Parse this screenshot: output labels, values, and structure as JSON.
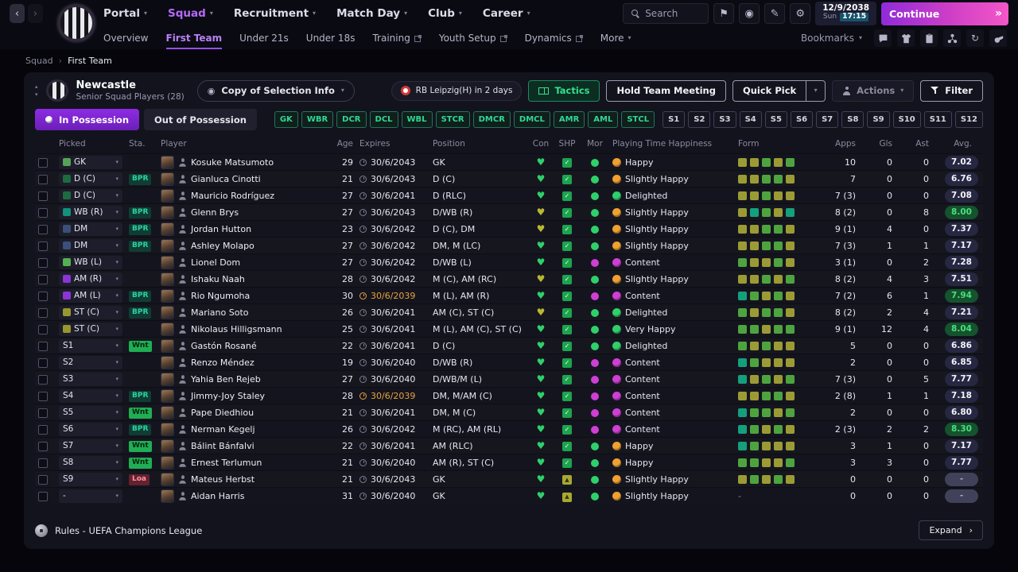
{
  "colors": {
    "accent_purple": "#8d2ce4",
    "accent_pink": "#f457c8",
    "accent_green": "#31d796",
    "warn_orange": "#e8a33d",
    "content_purple": "#cf3fd4",
    "happy_orange": "#f0a030",
    "positive_green": "#2fd06a"
  },
  "topbar": {
    "menus": [
      {
        "label": "Portal",
        "active": false
      },
      {
        "label": "Squad",
        "active": true
      },
      {
        "label": "Recruitment",
        "active": false
      },
      {
        "label": "Match Day",
        "active": false
      },
      {
        "label": "Club",
        "active": false
      },
      {
        "label": "Career",
        "active": false
      }
    ],
    "search_placeholder": "Search",
    "date": "12/9/2038",
    "day": "Sun",
    "time": "17:15",
    "continue_label": "Continue"
  },
  "subnav": {
    "items": [
      {
        "label": "Overview",
        "active": false,
        "popout": false,
        "dropdown": false
      },
      {
        "label": "First Team",
        "active": true,
        "popout": false,
        "dropdown": false
      },
      {
        "label": "Under 21s",
        "active": false,
        "popout": false,
        "dropdown": false
      },
      {
        "label": "Under 18s",
        "active": false,
        "popout": false,
        "dropdown": false
      },
      {
        "label": "Training",
        "active": false,
        "popout": true,
        "dropdown": false
      },
      {
        "label": "Youth Setup",
        "active": false,
        "popout": true,
        "dropdown": false
      },
      {
        "label": "Dynamics",
        "active": false,
        "popout": true,
        "dropdown": false
      },
      {
        "label": "More",
        "active": false,
        "popout": false,
        "dropdown": true
      }
    ],
    "bookmarks_label": "Bookmarks"
  },
  "breadcrumb": {
    "items": [
      "Squad",
      "First Team"
    ]
  },
  "panel": {
    "club_name": "Newcastle",
    "subtitle": "Senior Squad Players (28)",
    "selection_dropdown": "Copy of Selection Info",
    "next_match": "RB Leipzig(H) in 2 days",
    "tactics_label": "Tactics",
    "meeting_label": "Hold Team Meeting",
    "quick_pick_label": "Quick Pick",
    "actions_label": "Actions",
    "filter_label": "Filter",
    "tabs": [
      {
        "label": "In Possession",
        "active": true
      },
      {
        "label": "Out of Possession",
        "active": false
      }
    ],
    "position_filters": [
      "GK",
      "WBR",
      "DCR",
      "DCL",
      "WBL",
      "STCR",
      "DMCR",
      "DMCL",
      "AMR",
      "AML",
      "STCL"
    ],
    "slot_filters": [
      "S1",
      "S2",
      "S3",
      "S4",
      "S5",
      "S6",
      "S7",
      "S8",
      "S9",
      "S10",
      "S11",
      "S12"
    ],
    "table": {
      "headers": [
        "Picked",
        "Sta.",
        "Player",
        "Age",
        "Expires",
        "Position",
        "Con",
        "SHP",
        "Mor",
        "Playing Time Happiness",
        "Form",
        "Apps",
        "Gls",
        "Ast",
        "Avg."
      ],
      "rows": [
        {
          "picked": "GK",
          "picked_color": "gk",
          "sta": "",
          "name": "Kosuke Matsumoto",
          "age": "29",
          "expires": "30/6/2043",
          "expires_warn": false,
          "position": "GK",
          "con": "green",
          "shp": "check",
          "mor": "green",
          "happiness": "Happy",
          "happiness_color": "orange",
          "form": [
            "o",
            "o",
            "g",
            "o",
            "g"
          ],
          "apps": "10",
          "gls": "0",
          "ast": "0",
          "avg": "7.02",
          "avg_style": "dark"
        },
        {
          "picked": "D (C)",
          "picked_color": "d",
          "sta": "BPR",
          "name": "Gianluca Cinotti",
          "age": "21",
          "expires": "30/6/2043",
          "expires_warn": false,
          "position": "D (C)",
          "con": "green",
          "shp": "check",
          "mor": "green",
          "happiness": "Slightly Happy",
          "happiness_color": "orange",
          "form": [
            "o",
            "o",
            "g",
            "g",
            "o"
          ],
          "apps": "7",
          "gls": "0",
          "ast": "0",
          "avg": "6.76",
          "avg_style": "dark"
        },
        {
          "picked": "D (C)",
          "picked_color": "d",
          "sta": "",
          "name": "Mauricio Rodríguez",
          "age": "27",
          "expires": "30/6/2041",
          "expires_warn": false,
          "position": "D (RLC)",
          "con": "green",
          "shp": "check",
          "mor": "green",
          "happiness": "Delighted",
          "happiness_color": "green",
          "form": [
            "o",
            "o",
            "g",
            "o",
            "o"
          ],
          "apps": "7 (3)",
          "gls": "0",
          "ast": "0",
          "avg": "7.08",
          "avg_style": "dark"
        },
        {
          "picked": "WB (R)",
          "picked_color": "wb",
          "sta": "BPR",
          "name": "Glenn Brys",
          "age": "27",
          "expires": "30/6/2043",
          "expires_warn": false,
          "position": "D/WB (R)",
          "con": "olive",
          "shp": "check",
          "mor": "green",
          "happiness": "Slightly Happy",
          "happiness_color": "orange",
          "form": [
            "o",
            "t",
            "g",
            "o",
            "t"
          ],
          "apps": "8 (2)",
          "gls": "0",
          "ast": "8",
          "avg": "8.00",
          "avg_style": "green"
        },
        {
          "picked": "DM",
          "picked_color": "dm",
          "sta": "BPR",
          "name": "Jordan Hutton",
          "age": "23",
          "expires": "30/6/2042",
          "expires_warn": false,
          "position": "D (C), DM",
          "con": "olive",
          "shp": "check",
          "mor": "green",
          "happiness": "Slightly Happy",
          "happiness_color": "orange",
          "form": [
            "o",
            "o",
            "g",
            "g",
            "o"
          ],
          "apps": "9 (1)",
          "gls": "4",
          "ast": "0",
          "avg": "7.37",
          "avg_style": "dark"
        },
        {
          "picked": "DM",
          "picked_color": "dm",
          "sta": "BPR",
          "name": "Ashley Molapo",
          "age": "27",
          "expires": "30/6/2042",
          "expires_warn": false,
          "position": "DM, M (LC)",
          "con": "green",
          "shp": "check",
          "mor": "green",
          "happiness": "Slightly Happy",
          "happiness_color": "orange",
          "form": [
            "o",
            "o",
            "g",
            "g",
            "o"
          ],
          "apps": "7 (3)",
          "gls": "1",
          "ast": "1",
          "avg": "7.17",
          "avg_style": "dark"
        },
        {
          "picked": "WB (L)",
          "picked_color": "wbl",
          "sta": "",
          "name": "Lionel Dom",
          "age": "27",
          "expires": "30/6/2042",
          "expires_warn": false,
          "position": "D/WB (L)",
          "con": "green",
          "shp": "check",
          "mor": "purple",
          "happiness": "Content",
          "happiness_color": "purple",
          "form": [
            "g",
            "o",
            "o",
            "g",
            "o"
          ],
          "apps": "3 (1)",
          "gls": "0",
          "ast": "2",
          "avg": "7.28",
          "avg_style": "dark"
        },
        {
          "picked": "AM (R)",
          "picked_color": "am",
          "sta": "",
          "name": "Ishaku Naah",
          "age": "28",
          "expires": "30/6/2042",
          "expires_warn": false,
          "position": "M (C), AM (RC)",
          "con": "olive",
          "shp": "check",
          "mor": "green",
          "happiness": "Slightly Happy",
          "happiness_color": "orange",
          "form": [
            "o",
            "o",
            "g",
            "o",
            "g"
          ],
          "apps": "8 (2)",
          "gls": "4",
          "ast": "3",
          "avg": "7.51",
          "avg_style": "dark"
        },
        {
          "picked": "AM (L)",
          "picked_color": "am",
          "sta": "BPR",
          "name": "Rio Ngumoha",
          "age": "30",
          "expires": "30/6/2039",
          "expires_warn": true,
          "position": "M (L), AM (R)",
          "con": "green",
          "shp": "check",
          "mor": "purple",
          "happiness": "Content",
          "happiness_color": "purple",
          "form": [
            "t",
            "g",
            "o",
            "g",
            "o"
          ],
          "apps": "7 (2)",
          "gls": "6",
          "ast": "1",
          "avg": "7.94",
          "avg_style": "green"
        },
        {
          "picked": "ST (C)",
          "picked_color": "st",
          "sta": "BPR",
          "name": "Mariano Soto",
          "age": "26",
          "expires": "30/6/2041",
          "expires_warn": false,
          "position": "AM (C), ST (C)",
          "con": "olive",
          "shp": "check",
          "mor": "green",
          "happiness": "Delighted",
          "happiness_color": "green",
          "form": [
            "g",
            "o",
            "g",
            "g",
            "o"
          ],
          "apps": "8 (2)",
          "gls": "2",
          "ast": "4",
          "avg": "7.21",
          "avg_style": "dark"
        },
        {
          "picked": "ST (C)",
          "picked_color": "st",
          "sta": "",
          "name": "Nikolaus Hilligsmann",
          "age": "25",
          "expires": "30/6/2041",
          "expires_warn": false,
          "position": "M (L), AM (C), ST (C)",
          "con": "green",
          "shp": "check",
          "mor": "green",
          "happiness": "Very Happy",
          "happiness_color": "green",
          "form": [
            "g",
            "g",
            "o",
            "g",
            "g"
          ],
          "apps": "9 (1)",
          "gls": "12",
          "ast": "4",
          "avg": "8.04",
          "avg_style": "green"
        },
        {
          "picked": "S1",
          "picked_color": null,
          "sta": "Wnt",
          "name": "Gastón Rosané",
          "age": "22",
          "expires": "30/6/2041",
          "expires_warn": false,
          "position": "D (C)",
          "con": "green",
          "shp": "check",
          "mor": "green",
          "happiness": "Delighted",
          "happiness_color": "green",
          "form": [
            "g",
            "o",
            "g",
            "o",
            "o"
          ],
          "apps": "5",
          "gls": "0",
          "ast": "0",
          "avg": "6.86",
          "avg_style": "dark"
        },
        {
          "picked": "S2",
          "picked_color": null,
          "sta": "",
          "name": "Renzo Méndez",
          "age": "19",
          "expires": "30/6/2040",
          "expires_warn": false,
          "position": "D/WB (R)",
          "con": "green",
          "shp": "check",
          "mor": "purple",
          "happiness": "Content",
          "happiness_color": "purple",
          "form": [
            "t",
            "g",
            "o",
            "o",
            "o"
          ],
          "apps": "2",
          "gls": "0",
          "ast": "0",
          "avg": "6.85",
          "avg_style": "dark"
        },
        {
          "picked": "S3",
          "picked_color": null,
          "sta": "",
          "name": "Yahia Ben Rejeb",
          "age": "27",
          "expires": "30/6/2040",
          "expires_warn": false,
          "position": "D/WB/M (L)",
          "con": "green",
          "shp": "check",
          "mor": "purple",
          "happiness": "Content",
          "happiness_color": "purple",
          "form": [
            "t",
            "o",
            "g",
            "o",
            "g"
          ],
          "apps": "7 (3)",
          "gls": "0",
          "ast": "5",
          "avg": "7.77",
          "avg_style": "dark"
        },
        {
          "picked": "S4",
          "picked_color": null,
          "sta": "BPR",
          "name": "Jimmy-Joy Staley",
          "age": "28",
          "expires": "30/6/2039",
          "expires_warn": true,
          "position": "DM, M/AM (C)",
          "con": "green",
          "shp": "check",
          "mor": "purple",
          "happiness": "Content",
          "happiness_color": "purple",
          "form": [
            "o",
            "o",
            "g",
            "g",
            "o"
          ],
          "apps": "2 (8)",
          "gls": "1",
          "ast": "1",
          "avg": "7.18",
          "avg_style": "dark"
        },
        {
          "picked": "S5",
          "picked_color": null,
          "sta": "Wnt",
          "name": "Pape Diedhiou",
          "age": "21",
          "expires": "30/6/2041",
          "expires_warn": false,
          "position": "DM, M (C)",
          "con": "green",
          "shp": "check",
          "mor": "purple",
          "happiness": "Content",
          "happiness_color": "purple",
          "form": [
            "t",
            "g",
            "g",
            "o",
            "g"
          ],
          "apps": "2",
          "gls": "0",
          "ast": "0",
          "avg": "6.80",
          "avg_style": "dark"
        },
        {
          "picked": "S6",
          "picked_color": null,
          "sta": "BPR",
          "name": "Nerman Kegelj",
          "age": "26",
          "expires": "30/6/2042",
          "expires_warn": false,
          "position": "M (RC), AM (RL)",
          "con": "green",
          "shp": "check",
          "mor": "purple",
          "happiness": "Content",
          "happiness_color": "purple",
          "form": [
            "t",
            "g",
            "o",
            "g",
            "o"
          ],
          "apps": "2 (3)",
          "gls": "2",
          "ast": "2",
          "avg": "8.30",
          "avg_style": "green"
        },
        {
          "picked": "S7",
          "picked_color": null,
          "sta": "Wnt",
          "name": "Bálint Bánfalvi",
          "age": "22",
          "expires": "30/6/2041",
          "expires_warn": false,
          "position": "AM (RLC)",
          "con": "green",
          "shp": "check",
          "mor": "green",
          "happiness": "Happy",
          "happiness_color": "orange",
          "form": [
            "t",
            "g",
            "o",
            "o",
            "o"
          ],
          "apps": "3",
          "gls": "1",
          "ast": "0",
          "avg": "7.17",
          "avg_style": "dark"
        },
        {
          "picked": "S8",
          "picked_color": null,
          "sta": "Wnt",
          "name": "Ernest Terlumun",
          "age": "21",
          "expires": "30/6/2040",
          "expires_warn": false,
          "position": "AM (R), ST (C)",
          "con": "green",
          "shp": "check",
          "mor": "green",
          "happiness": "Happy",
          "happiness_color": "orange",
          "form": [
            "g",
            "g",
            "o",
            "o",
            "g"
          ],
          "apps": "3",
          "gls": "3",
          "ast": "0",
          "avg": "7.77",
          "avg_style": "dark"
        },
        {
          "picked": "S9",
          "picked_color": null,
          "sta": "Loa",
          "name": "Mateus Herbst",
          "age": "21",
          "expires": "30/6/2043",
          "expires_warn": false,
          "position": "GK",
          "con": "green",
          "shp": "up",
          "mor": "green",
          "happiness": "Slightly Happy",
          "happiness_color": "orange",
          "form": [
            "o",
            "g",
            "o",
            "g",
            "o"
          ],
          "apps": "0",
          "gls": "0",
          "ast": "0",
          "avg": "-",
          "avg_style": "empty"
        },
        {
          "picked": "-",
          "picked_color": null,
          "sta": "",
          "name": "Aidan Harris",
          "age": "31",
          "expires": "30/6/2040",
          "expires_warn": false,
          "position": "GK",
          "con": "green",
          "shp": "up",
          "mor": "green",
          "happiness": "Slightly Happy",
          "happiness_color": "orange",
          "form": null,
          "apps": "0",
          "gls": "0",
          "ast": "0",
          "avg": "-",
          "avg_style": "empty"
        }
      ]
    },
    "footer": {
      "rules": "Rules - UEFA Champions League",
      "expand_label": "Expand"
    }
  }
}
